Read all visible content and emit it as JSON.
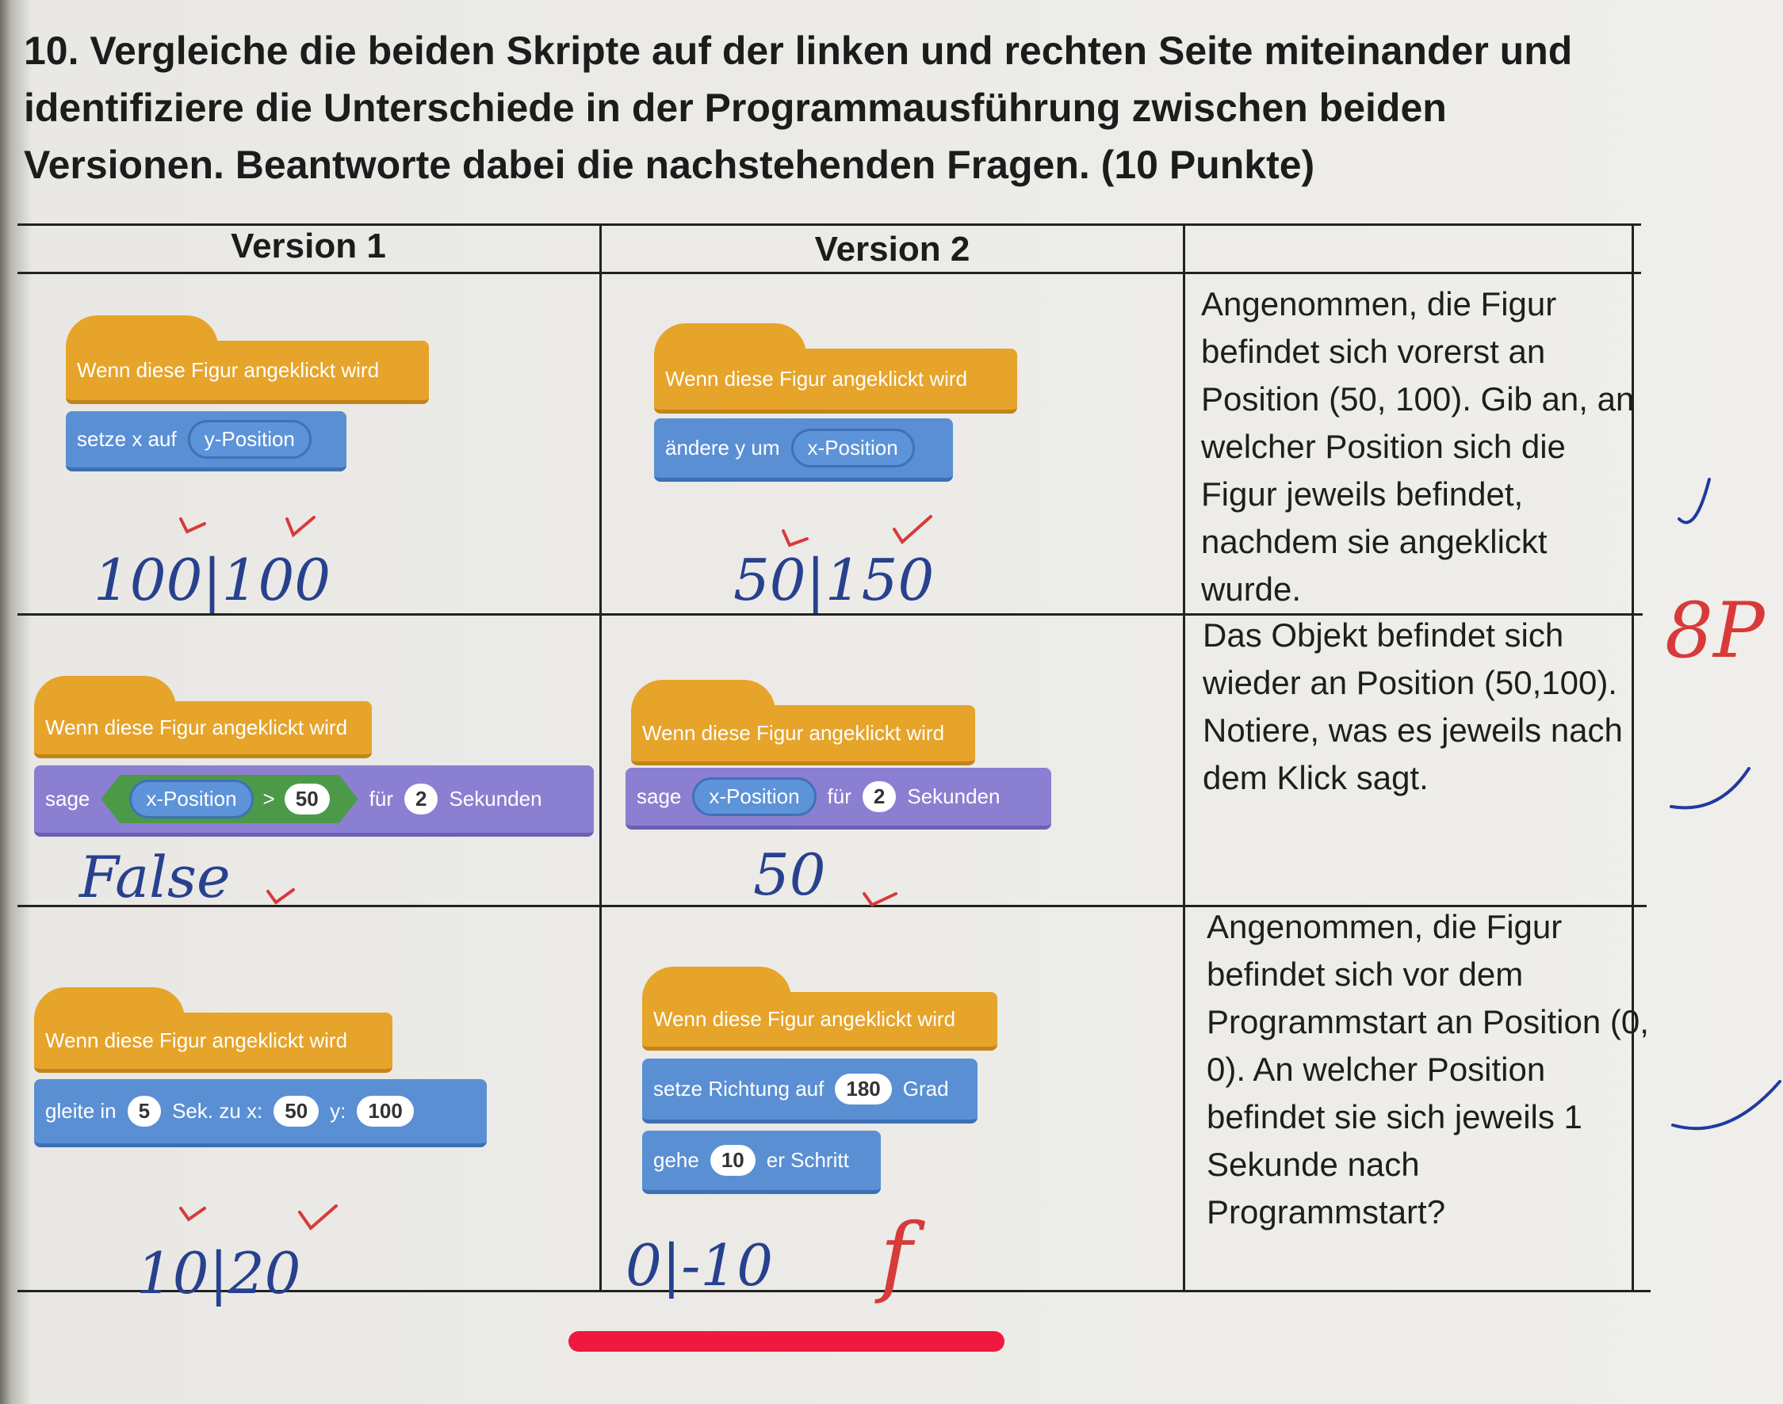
{
  "question": "10. Vergleiche die beiden Skripte auf der linken und rechten Seite miteinander und identifiziere die Unterschiede in der Programmausführung zwischen beiden Versionen. Beantworte dabei die nachstehenden Fragen. (10 Punkte)",
  "table": {
    "headers": [
      "Version 1",
      "Version 2"
    ],
    "rows": [
      {
        "version1": {
          "blocks": [
            [
              "Wenn diese Figur angeklickt wird"
            ],
            [
              "setze x auf",
              "y-Position"
            ]
          ],
          "answer": "100|100"
        },
        "version2": {
          "blocks": [
            [
              "Wenn diese Figur angeklickt wird"
            ],
            [
              "ändere y um",
              "x-Position"
            ]
          ],
          "answer": "50|150"
        },
        "question": "Angenommen, die Figur befindet sich vorerst an Position (50, 100). Gib an, an welcher Position sich die Figur jeweils befindet, nachdem sie angeklickt wurde."
      },
      {
        "version1": {
          "blocks": [
            [
              "Wenn diese Figur angeklickt wird"
            ],
            [
              "sage",
              "x-Position",
              ">",
              "50",
              "für",
              "2",
              "Sekunden"
            ]
          ],
          "answer": "False"
        },
        "version2": {
          "blocks": [
            [
              "Wenn diese Figur angeklickt wird"
            ],
            [
              "sage",
              "x-Position",
              "für",
              "2",
              "Sekunden"
            ]
          ],
          "answer": "50"
        },
        "question": "Das Objekt befindet sich wieder an Position (50,100). Notiere, was es jeweils nach dem Klick sagt."
      },
      {
        "version1": {
          "blocks": [
            [
              "Wenn diese Figur angeklickt wird"
            ],
            [
              "gleite in",
              "5",
              "Sek. zu x:",
              "50",
              "y:",
              "100"
            ]
          ],
          "answer": "10|20"
        },
        "version2": {
          "blocks": [
            [
              "Wenn diese Figur angeklickt wird"
            ],
            [
              "setze Richtung auf",
              "180",
              "Grad"
            ],
            [
              "gehe",
              "10",
              "er Schritt"
            ]
          ],
          "answer": "0|-10",
          "correction": "f"
        },
        "question": "Angenommen, die Figur befindet sich vor dem Programmstart an Position (0, 0). An welcher Position befindet sie sich jeweils 1 Sekunde nach Programmstart?"
      }
    ]
  },
  "grade": "8P"
}
